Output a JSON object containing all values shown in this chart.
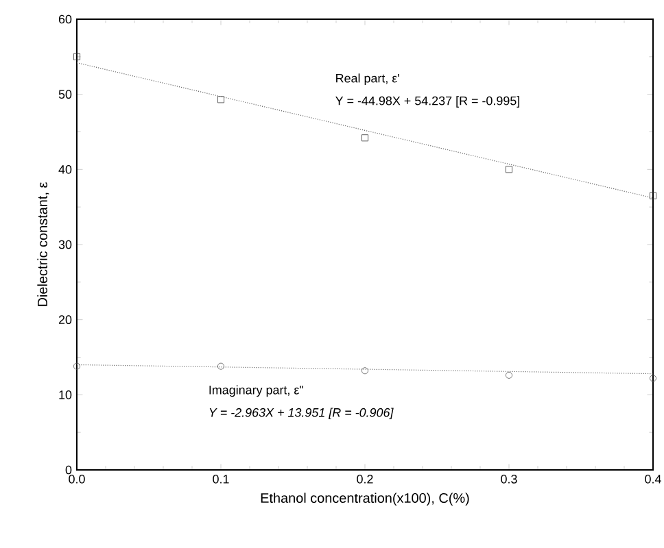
{
  "chart_data": {
    "type": "scatter",
    "xlabel": "Ethanol concentration(x100), C(%)",
    "ylabel": "Dielectric constant, ε",
    "xlim": [
      0,
      0.4
    ],
    "ylim": [
      0,
      60
    ],
    "xticks": [
      {
        "value": 0,
        "label": "0.0"
      },
      0.1,
      0.2,
      0.3,
      0.4
    ],
    "yticks": [
      0,
      10,
      20,
      30,
      40,
      50,
      60
    ],
    "series": [
      {
        "marker": "square",
        "color": "#333333",
        "x": [
          0,
          0.1,
          0.2,
          0.3,
          0.4
        ],
        "values": [
          55,
          49.3,
          44.2,
          40,
          36.5
        ]
      },
      {
        "marker": "circle",
        "color": "#555555",
        "x": [
          0,
          0.1,
          0.2,
          0.3,
          0.4
        ],
        "values": [
          13.8,
          13.8,
          13.2,
          12.6,
          12.2
        ]
      },
      {
        "type": "line",
        "line_style": "dotted",
        "color": "#666666",
        "x": [
          0,
          0.4
        ],
        "values": [
          54.2,
          36.2
        ]
      },
      {
        "type": "line",
        "line_style": "dotted",
        "color": "#666666",
        "x": [
          0,
          0.4
        ],
        "values": [
          14.0,
          12.8
        ]
      }
    ],
    "annotations": [
      "Real part, ε'",
      "Y = -44.98X + 54.237 [R = -0.995]",
      "Imaginary part, ε\"",
      "*Y = -2.963X + 13.951 [R = -0.906]*"
    ]
  }
}
